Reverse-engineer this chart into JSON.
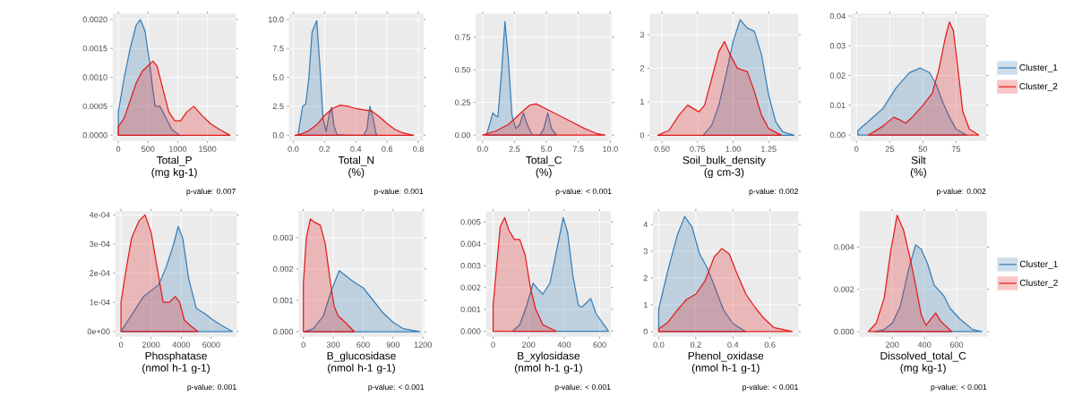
{
  "chart_data": [
    {
      "type": "area",
      "xlabel": "Total_P\n(mg kg-1)",
      "annotations": [
        "p-value: 0.007"
      ],
      "grid": true,
      "xlim": [
        -95,
        1980
      ],
      "ylim": [
        -0.0001,
        0.0021
      ],
      "xticks": [
        0,
        500,
        1000,
        1500
      ],
      "yticks": [
        {
          "value": 0,
          "label": "0.0000"
        },
        {
          "value": 0.0005,
          "label": "0.0005"
        },
        {
          "value": 0.001,
          "label": "0.0010"
        },
        {
          "value": 0.0015,
          "label": "0.0015"
        },
        {
          "value": 0.002,
          "label": "0.0020"
        }
      ],
      "series": [
        {
          "color": "#377eb8",
          "x": [
            0,
            100,
            200,
            300,
            370,
            450,
            520,
            580,
            620,
            700,
            800,
            900,
            1030
          ],
          "values": [
            0.0004,
            0.001,
            0.0015,
            0.0019,
            0.002,
            0.0018,
            0.0013,
            0.0008,
            0.0005,
            0.0005,
            0.0003,
            0.0001,
            0
          ]
        },
        {
          "color": "#e41a1c",
          "x": [
            0,
            100,
            200,
            300,
            400,
            500,
            580,
            650,
            750,
            850,
            950,
            1050,
            1150,
            1270,
            1400,
            1550,
            1700,
            1880
          ],
          "values": [
            0.00015,
            0.0003,
            0.0006,
            0.0009,
            0.0011,
            0.0012,
            0.00128,
            0.0012,
            0.0008,
            0.0004,
            0.00025,
            0.00025,
            0.0004,
            0.0005,
            0.00035,
            0.0002,
            0.0001,
            0
          ]
        }
      ]
    },
    {
      "type": "area",
      "xlabel": "Total_N\n(%)",
      "annotations": [
        "p-value: 0.001"
      ],
      "grid": true,
      "xlim": [
        -0.027,
        0.833
      ],
      "ylim": [
        -0.5,
        10.5
      ],
      "xticks": [
        {
          "value": 0,
          "label": "0.0"
        },
        {
          "value": 0.2,
          "label": "0.2"
        },
        {
          "value": 0.4,
          "label": "0.4"
        },
        {
          "value": 0.6,
          "label": "0.6"
        },
        {
          "value": 0.8,
          "label": "0.8"
        }
      ],
      "yticks": [
        {
          "value": 0,
          "label": "0.0"
        },
        {
          "value": 2.5,
          "label": "2.5"
        },
        {
          "value": 5,
          "label": "5.0"
        },
        {
          "value": 7.5,
          "label": "7.5"
        },
        {
          "value": 10,
          "label": "10.0"
        }
      ],
      "series": [
        {
          "color": "#377eb8",
          "x": [
            0.03,
            0.06,
            0.08,
            0.1,
            0.12,
            0.15,
            0.17,
            0.19,
            0.21,
            0.23,
            0.245,
            0.26,
            0.28,
            0.35,
            0.45,
            0.47,
            0.49,
            0.51,
            0.53,
            0.54
          ],
          "values": [
            0,
            2.5,
            2.7,
            5,
            8.9,
            9.9,
            6,
            1.5,
            0.3,
            1.8,
            2.4,
            0.8,
            0.05,
            0,
            0,
            0.5,
            2.5,
            1.5,
            0.1,
            0
          ]
        },
        {
          "color": "#e41a1c",
          "x": [
            0.01,
            0.05,
            0.1,
            0.15,
            0.2,
            0.25,
            0.3,
            0.35,
            0.4,
            0.45,
            0.5,
            0.55,
            0.6,
            0.65,
            0.7,
            0.77
          ],
          "values": [
            0,
            0.1,
            0.4,
            0.9,
            1.7,
            2.3,
            2.6,
            2.5,
            2.3,
            2.2,
            2.1,
            1.6,
            1,
            0.5,
            0.2,
            0
          ]
        }
      ]
    },
    {
      "type": "area",
      "xlabel": "Total_C\n(%)",
      "annotations": [
        "p-value: < 0.001"
      ],
      "grid": true,
      "xlim": [
        -0.54,
        10.13
      ],
      "ylim": [
        -0.045,
        0.93
      ],
      "xticks": [
        {
          "value": 0,
          "label": "0.0"
        },
        {
          "value": 2.5,
          "label": "2.5"
        },
        {
          "value": 5,
          "label": "5.0"
        },
        {
          "value": 7.5,
          "label": "7.5"
        },
        {
          "value": 10,
          "label": "10.0"
        }
      ],
      "yticks": [
        {
          "value": 0,
          "label": "0.00"
        },
        {
          "value": 0.25,
          "label": "0.25"
        },
        {
          "value": 0.5,
          "label": "0.50"
        },
        {
          "value": 0.75,
          "label": "0.75"
        }
      ],
      "series": [
        {
          "color": "#377eb8",
          "x": [
            0.3,
            0.6,
            0.8,
            1.0,
            1.2,
            1.5,
            1.75,
            2.0,
            2.3,
            2.6,
            2.9,
            3.2,
            3.5,
            3.9,
            4.5,
            4.8,
            5.1,
            5.4,
            5.8
          ],
          "values": [
            0,
            0.1,
            0.17,
            0.15,
            0.14,
            0.5,
            0.87,
            0.6,
            0.15,
            0.05,
            0.08,
            0.17,
            0.08,
            0,
            0,
            0.05,
            0.17,
            0.05,
            0
          ]
        },
        {
          "color": "#e41a1c",
          "x": [
            0,
            1,
            2,
            3,
            3.7,
            4.2,
            5,
            6,
            7,
            8,
            9,
            9.6
          ],
          "values": [
            0,
            0.03,
            0.08,
            0.17,
            0.23,
            0.24,
            0.2,
            0.15,
            0.1,
            0.05,
            0.01,
            0
          ]
        }
      ]
    },
    {
      "type": "area",
      "xlabel": "Soil_bulk_density\n(g cm-3)",
      "annotations": [
        "p-value: 0.002"
      ],
      "grid": true,
      "xlim": [
        0.413,
        1.46
      ],
      "ylim": [
        -0.17,
        3.63
      ],
      "xticks": [
        {
          "value": 0.5,
          "label": "0.50"
        },
        {
          "value": 0.75,
          "label": "0.75"
        },
        {
          "value": 1,
          "label": "1.00"
        },
        {
          "value": 1.25,
          "label": "1.25"
        }
      ],
      "yticks": [
        0,
        1,
        2,
        3
      ],
      "series": [
        {
          "color": "#377eb8",
          "x": [
            0.79,
            0.85,
            0.9,
            0.95,
            1.0,
            1.05,
            1.1,
            1.15,
            1.2,
            1.25,
            1.3,
            1.35,
            1.43
          ],
          "values": [
            0,
            0.3,
            0.9,
            1.8,
            2.8,
            3.45,
            3.2,
            3.1,
            2.4,
            1.2,
            0.4,
            0.1,
            0
          ]
        },
        {
          "color": "#e41a1c",
          "x": [
            0.47,
            0.55,
            0.62,
            0.68,
            0.72,
            0.76,
            0.8,
            0.85,
            0.9,
            0.94,
            0.98,
            1.03,
            1.1,
            1.15,
            1.2,
            1.25,
            1.34
          ],
          "values": [
            0,
            0.15,
            0.6,
            0.9,
            0.8,
            0.7,
            0.9,
            1.7,
            2.5,
            2.8,
            2.4,
            2.0,
            1.9,
            1.3,
            0.6,
            0.2,
            0
          ]
        }
      ]
    },
    {
      "type": "area",
      "xlabel": "Silt\n(%)",
      "annotations": [
        "p-value: 0.002"
      ],
      "grid": true,
      "legend": "right",
      "xlim": [
        -4.3,
        97.6
      ],
      "ylim": [
        -0.002,
        0.0408
      ],
      "xticks": [
        0,
        25,
        50,
        75
      ],
      "yticks": [
        {
          "value": 0,
          "label": "0.00"
        },
        {
          "value": 0.01,
          "label": "0.01"
        },
        {
          "value": 0.02,
          "label": "0.02"
        },
        {
          "value": 0.03,
          "label": "0.03"
        },
        {
          "value": 0.04,
          "label": "0.04"
        }
      ],
      "series": [
        {
          "name": "Cluster_1",
          "color": "#377eb8",
          "x": [
            1,
            10,
            20,
            30,
            40,
            48,
            55,
            60,
            65,
            70,
            75,
            83
          ],
          "values": [
            0.0015,
            0.005,
            0.009,
            0.016,
            0.021,
            0.0225,
            0.021,
            0.017,
            0.011,
            0.006,
            0.002,
            0
          ]
        },
        {
          "name": "Cluster_2",
          "color": "#e41a1c",
          "x": [
            9,
            20,
            28,
            33,
            37,
            42,
            50,
            57,
            62,
            67,
            70,
            73,
            77,
            80,
            85,
            92
          ],
          "values": [
            0,
            0.003,
            0.006,
            0.005,
            0.004,
            0.006,
            0.01,
            0.014,
            0.022,
            0.033,
            0.038,
            0.035,
            0.02,
            0.008,
            0.002,
            0
          ]
        }
      ]
    },
    {
      "type": "area",
      "xlabel": "Phosphatase\n(nmol h-1 g-1)",
      "annotations": [
        "p-value: 0.001"
      ],
      "grid": true,
      "xlim": [
        -381,
        7695
      ],
      "ylim": [
        -1.8e-05,
        0.000413
      ],
      "xticks": [
        0,
        2000,
        4000,
        6000
      ],
      "yticks": [
        {
          "value": 0,
          "label": "0e+00"
        },
        {
          "value": 0.0001,
          "label": "1e-04"
        },
        {
          "value": 0.0002,
          "label": "2e-04"
        },
        {
          "value": 0.0003,
          "label": "3e-04"
        },
        {
          "value": 0.0004,
          "label": "4e-04"
        }
      ],
      "series": [
        {
          "color": "#377eb8",
          "x": [
            0,
            500,
            1000,
            1500,
            2000,
            2500,
            3000,
            3500,
            3800,
            4100,
            4500,
            5000,
            5600,
            6100,
            6700,
            7400
          ],
          "values": [
            0,
            4e-05,
            8e-05,
            0.00012,
            0.00014,
            0.00016,
            0.00022,
            0.0003,
            0.00036,
            0.00032,
            0.00018,
            8e-05,
            6e-05,
            4e-05,
            2e-05,
            0
          ]
        },
        {
          "color": "#e41a1c",
          "x": [
            0,
            300,
            700,
            1200,
            1600,
            2000,
            2400,
            2800,
            3200,
            3600,
            3900,
            4200,
            4600,
            5100
          ],
          "values": [
            0.0001,
            0.0002,
            0.00032,
            0.00038,
            0.0004,
            0.00034,
            0.00022,
            0.0001,
            0.0001,
            0.00012,
            0.0001,
            4e-05,
            2e-05,
            0
          ]
        }
      ]
    },
    {
      "type": "area",
      "xlabel": "B_glucosidase\n(nmol h-1 g-1)",
      "annotations": [
        "p-value: < 0.001"
      ],
      "grid": true,
      "xlim": [
        -49,
        1214
      ],
      "ylim": [
        -0.00016,
        0.00385
      ],
      "xticks": [
        0,
        300,
        600,
        900,
        1200
      ],
      "yticks": [
        {
          "value": 0,
          "label": "0.000"
        },
        {
          "value": 0.001,
          "label": "0.001"
        },
        {
          "value": 0.002,
          "label": "0.002"
        },
        {
          "value": 0.003,
          "label": "0.003"
        }
      ],
      "series": [
        {
          "color": "#377eb8",
          "x": [
            10,
            100,
            200,
            280,
            360,
            420,
            500,
            600,
            700,
            800,
            900,
            1000,
            1170
          ],
          "values": [
            0,
            0.0001,
            0.0005,
            0.0013,
            0.00195,
            0.0018,
            0.0016,
            0.0014,
            0.001,
            0.0006,
            0.0003,
            0.0001,
            0
          ]
        },
        {
          "color": "#e41a1c",
          "x": [
            0,
            30,
            70,
            110,
            170,
            220,
            270,
            310,
            350,
            420,
            510
          ],
          "values": [
            0.00155,
            0.003,
            0.0036,
            0.0035,
            0.0034,
            0.0028,
            0.0016,
            0.0008,
            0.0005,
            0.0003,
            0
          ]
        }
      ]
    },
    {
      "type": "area",
      "xlabel": "B_xylosidase\n(nmol h-1 g-1)",
      "annotations": [
        "p-value: < 0.001"
      ],
      "grid": true,
      "xlim": [
        -40,
        664
      ],
      "ylim": [
        -0.00025,
        0.0055
      ],
      "xticks": [
        0,
        200,
        400,
        600
      ],
      "yticks": [
        {
          "value": 0,
          "label": "0.000"
        },
        {
          "value": 0.001,
          "label": "0.001"
        },
        {
          "value": 0.002,
          "label": "0.002"
        },
        {
          "value": 0.003,
          "label": "0.003"
        },
        {
          "value": 0.004,
          "label": "0.004"
        },
        {
          "value": 0.005,
          "label": "0.005"
        }
      ],
      "series": [
        {
          "color": "#377eb8",
          "x": [
            110,
            150,
            190,
            225,
            255,
            280,
            320,
            360,
            395,
            420,
            450,
            480,
            500,
            525,
            550,
            580,
            650
          ],
          "values": [
            0,
            0.0003,
            0.0012,
            0.0022,
            0.0019,
            0.0017,
            0.0022,
            0.0038,
            0.0052,
            0.0045,
            0.0025,
            0.0012,
            0.0011,
            0.0013,
            0.0015,
            0.0008,
            0
          ]
        },
        {
          "color": "#e41a1c",
          "x": [
            0,
            20,
            40,
            65,
            90,
            120,
            150,
            180,
            210,
            240,
            280,
            355
          ],
          "values": [
            0.0012,
            0.003,
            0.0048,
            0.0052,
            0.0046,
            0.0042,
            0.0042,
            0.0035,
            0.002,
            0.001,
            0.0003,
            0
          ]
        }
      ]
    },
    {
      "type": "area",
      "xlabel": "Phenol_oxidase\n(nmol h-1 g-1)",
      "annotations": [
        "p-value: < 0.001"
      ],
      "grid": true,
      "xlim": [
        -0.031,
        0.754
      ],
      "ylim": [
        -0.19,
        4.5
      ],
      "xticks": [
        {
          "value": 0,
          "label": "0.0"
        },
        {
          "value": 0.2,
          "label": "0.2"
        },
        {
          "value": 0.4,
          "label": "0.4"
        },
        {
          "value": 0.6,
          "label": "0.6"
        }
      ],
      "yticks": [
        0,
        1,
        2,
        3,
        4
      ],
      "series": [
        {
          "color": "#377eb8",
          "x": [
            0,
            0.05,
            0.1,
            0.14,
            0.18,
            0.22,
            0.26,
            0.3,
            0.35,
            0.4,
            0.47
          ],
          "values": [
            0.85,
            2.3,
            3.6,
            4.3,
            3.9,
            2.9,
            2.4,
            1.7,
            0.8,
            0.3,
            0
          ]
        },
        {
          "color": "#e41a1c",
          "x": [
            0,
            0.05,
            0.1,
            0.15,
            0.2,
            0.25,
            0.3,
            0.34,
            0.38,
            0.42,
            0.47,
            0.52,
            0.56,
            0.62,
            0.72
          ],
          "values": [
            0.1,
            0.35,
            0.8,
            1.2,
            1.4,
            1.9,
            2.8,
            3.1,
            2.9,
            2.2,
            1.4,
            0.9,
            0.55,
            0.15,
            0
          ]
        }
      ]
    },
    {
      "type": "area",
      "xlabel": "Dissolved_total_C\n(mg kg-1)",
      "annotations": [
        "p-value: < 0.001"
      ],
      "grid": true,
      "legend": "right",
      "xlim": [
        -5,
        789
      ],
      "ylim": [
        -0.00024,
        0.0057
      ],
      "xticks": [
        200,
        400,
        600
      ],
      "yticks": [
        {
          "value": 0,
          "label": "0.000"
        },
        {
          "value": 0.002,
          "label": "0.002"
        },
        {
          "value": 0.004,
          "label": "0.004"
        }
      ],
      "series": [
        {
          "name": "Cluster_1",
          "color": "#377eb8",
          "x": [
            90,
            150,
            200,
            250,
            300,
            345,
            380,
            420,
            460,
            520,
            560,
            620,
            700,
            760
          ],
          "values": [
            0,
            0.0001,
            0.0004,
            0.0012,
            0.0029,
            0.0041,
            0.0039,
            0.0032,
            0.0022,
            0.0017,
            0.0011,
            0.0006,
            0.0001,
            0
          ]
        },
        {
          "name": "Cluster_2",
          "color": "#e41a1c",
          "x": [
            50,
            100,
            150,
            190,
            230,
            270,
            310,
            350,
            380,
            410,
            440,
            470,
            500,
            570
          ],
          "values": [
            0,
            0.0004,
            0.0016,
            0.0038,
            0.0055,
            0.0048,
            0.0035,
            0.002,
            0.0008,
            0.0003,
            0.0006,
            0.00088,
            0.0005,
            0
          ]
        }
      ]
    }
  ]
}
